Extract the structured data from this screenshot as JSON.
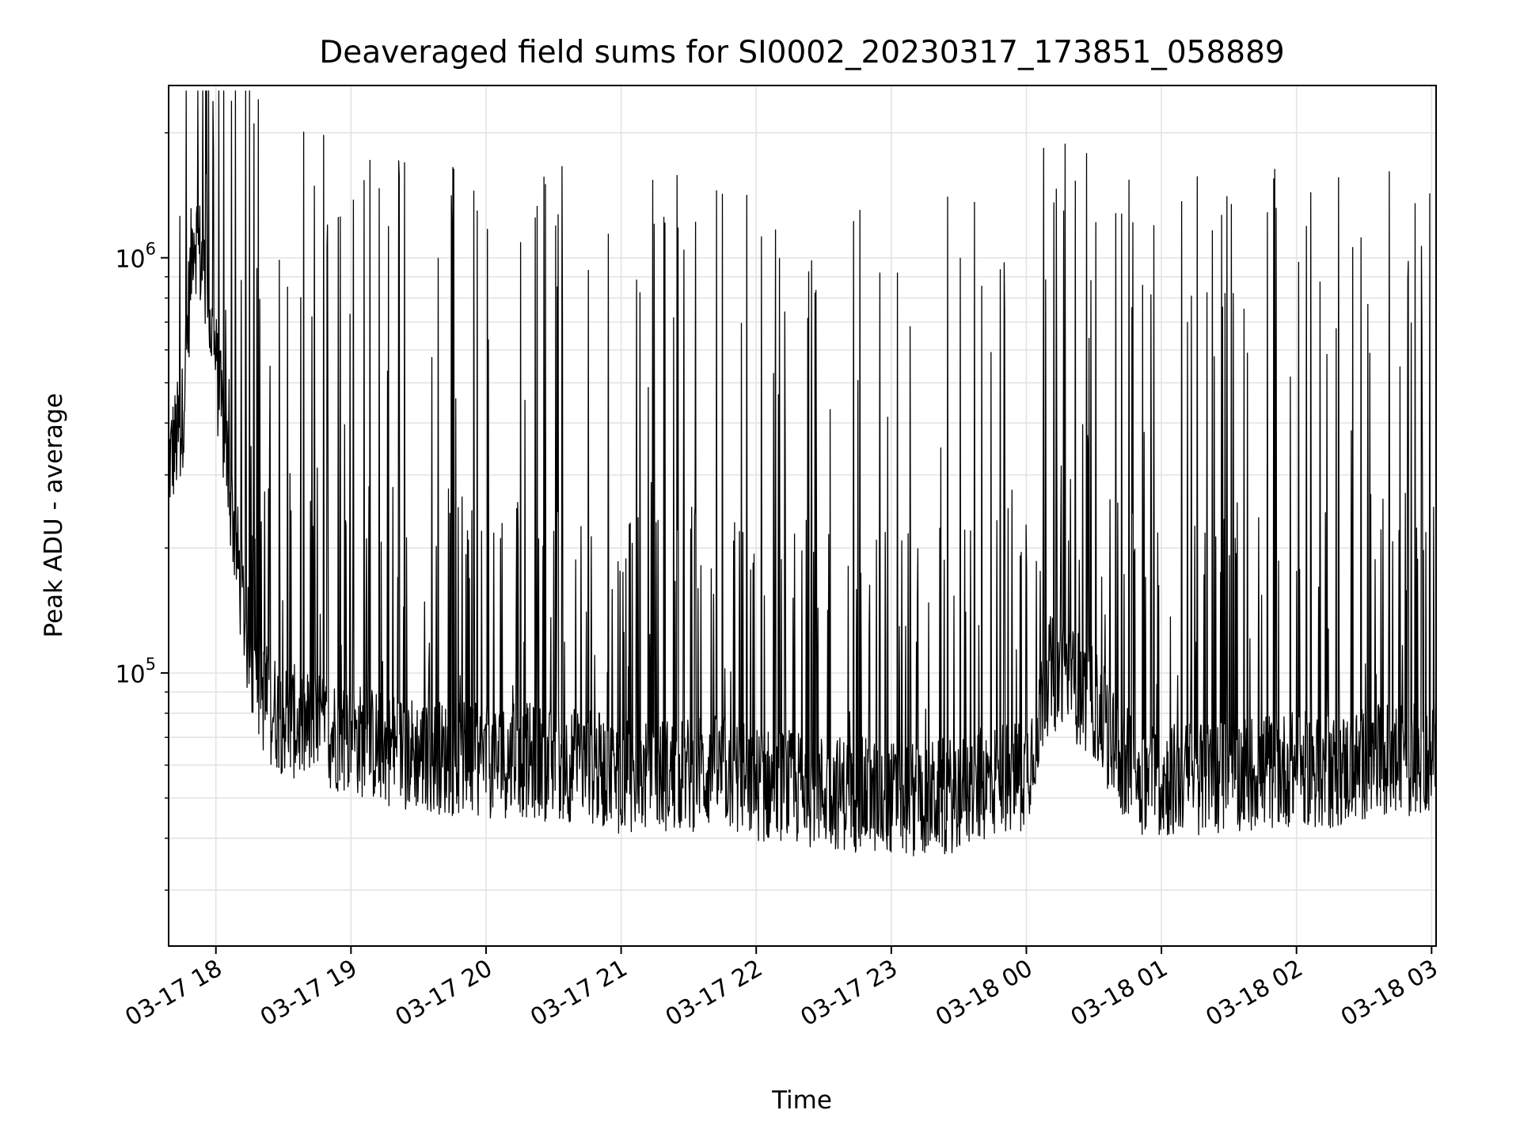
{
  "chart_data": {
    "type": "line",
    "title": "Deaveraged field sums for SI0002_20230317_173851_058889",
    "xlabel": "Time",
    "ylabel": "Peak ADU - average",
    "y_scale": "log",
    "ylim": [
      22000,
      2600000
    ],
    "xlim": [
      "03-17 17:39",
      "03-18 03:02"
    ],
    "grid": true,
    "line_color": "#000000",
    "x_ticks": [
      "03-17 18",
      "03-17 19",
      "03-17 20",
      "03-17 21",
      "03-17 22",
      "03-17 23",
      "03-18 00",
      "03-18 01",
      "03-18 02",
      "03-18 03"
    ],
    "y_ticks": [
      {
        "base": "10",
        "exp": "6",
        "value": 1000000
      },
      {
        "base": "10",
        "exp": "5",
        "value": 100000
      }
    ],
    "series": [
      {
        "x": [
          "03-17 17:39",
          "03-17 17:45",
          "03-17 17:50",
          "03-17 17:55",
          "03-17 18:00",
          "03-17 18:05",
          "03-17 18:10",
          "03-17 18:15",
          "03-17 18:20",
          "03-17 18:25",
          "03-17 18:30",
          "03-17 18:40",
          "03-17 18:50",
          "03-17 19:00",
          "03-17 19:15",
          "03-17 19:30",
          "03-17 19:45",
          "03-17 20:00",
          "03-17 20:15",
          "03-17 20:30",
          "03-17 20:45",
          "03-17 21:00",
          "03-17 21:15",
          "03-17 21:30",
          "03-17 21:45",
          "03-17 22:00",
          "03-17 22:15",
          "03-17 22:30",
          "03-17 22:45",
          "03-17 23:00",
          "03-17 23:15",
          "03-17 23:30",
          "03-17 23:45",
          "03-18 00:00",
          "03-18 00:10",
          "03-18 00:20",
          "03-18 00:30",
          "03-18 00:40",
          "03-18 00:50",
          "03-18 01:00",
          "03-18 01:15",
          "03-18 01:30",
          "03-18 01:45",
          "03-18 02:00",
          "03-18 02:15",
          "03-18 02:30",
          "03-18 02:45",
          "03-18 03:00"
        ],
        "values": [
          320000,
          400000,
          1200000,
          900000,
          550000,
          320000,
          180000,
          110000,
          90000,
          82000,
          78000,
          74000,
          72000,
          70000,
          66000,
          64000,
          62000,
          61000,
          62000,
          60000,
          60000,
          56000,
          57000,
          57000,
          58000,
          54000,
          53000,
          52000,
          51000,
          50000,
          50000,
          51000,
          55000,
          58000,
          100000,
          95000,
          85000,
          65000,
          56000,
          55000,
          56000,
          57000,
          58000,
          59000,
          58000,
          60000,
          62000,
          63000
        ]
      }
    ]
  }
}
